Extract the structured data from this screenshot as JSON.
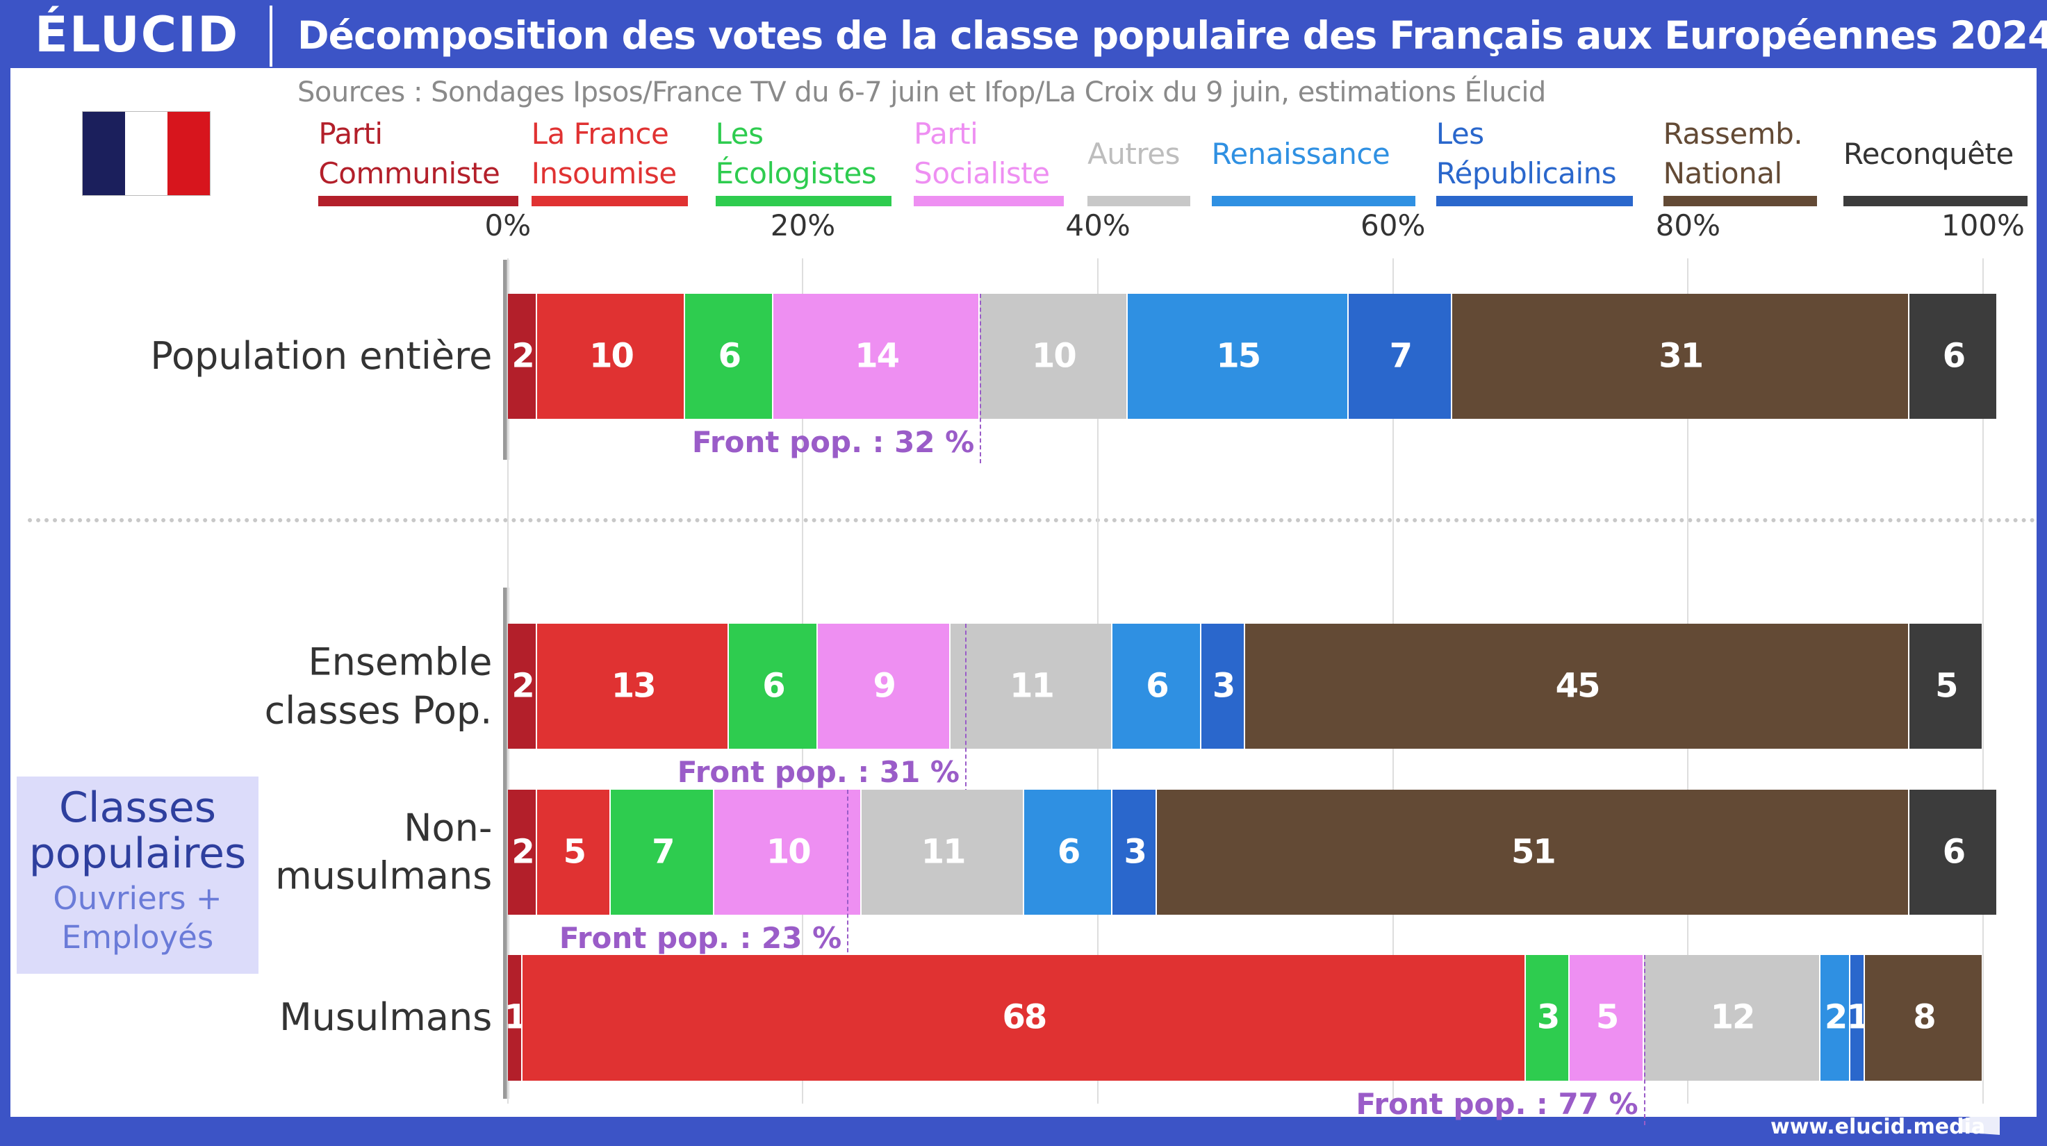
{
  "logo": "ÉLUCID",
  "footer": "www.elucid.media",
  "group": {
    "title": "Classes populaires",
    "subtitle": "Ouvriers + Employés"
  },
  "chart_data": {
    "type": "bar",
    "orientation": "horizontal",
    "stacked": true,
    "title": "Décomposition des votes de la classe populaire des Français aux Européennes 2024",
    "subtitle": "Sources : Sondages Ipsos/France TV du 6-7 juin et Ifop/La Croix du 9 juin, estimations Élucid",
    "categories": [
      "Population entière",
      "Ensemble\nclasses Pop.",
      "Non-\nmusulmans",
      "Musulmans"
    ],
    "series": [
      {
        "name": "Parti\nCommuniste",
        "color": "#b31f2a",
        "values": [
          2,
          2,
          2,
          1
        ]
      },
      {
        "name": "La France\nInsoumise",
        "color": "#e03232",
        "values": [
          10,
          13,
          5,
          68
        ]
      },
      {
        "name": "Les\nÉcologistes",
        "color": "#2ecc4f",
        "values": [
          6,
          6,
          7,
          3
        ]
      },
      {
        "name": "Parti\nSocialiste",
        "color": "#ee8ff2",
        "values": [
          14,
          9,
          10,
          5
        ]
      },
      {
        "name": "Autres",
        "color": "#c8c8c8",
        "values": [
          10,
          11,
          11,
          12
        ]
      },
      {
        "name": "Renaissance",
        "color": "#2f90e2",
        "values": [
          15,
          6,
          6,
          2
        ]
      },
      {
        "name": "Les\nRépublicains",
        "color": "#2a67cc",
        "values": [
          7,
          3,
          3,
          1
        ]
      },
      {
        "name": "Rassemb.\nNational",
        "color": "#634a35",
        "values": [
          31,
          45,
          51,
          8
        ]
      },
      {
        "name": "Reconquête",
        "color": "#3c3c3c",
        "values": [
          6,
          5,
          6,
          null
        ]
      }
    ],
    "annotations": [
      {
        "text": "Front pop. : 32 %",
        "value": 32
      },
      {
        "text": "Front pop. : 31 %",
        "value": 31
      },
      {
        "text": "Front pop. : 23 %",
        "value": 23
      },
      {
        "text": "Front pop. : 77 %",
        "value": 77
      }
    ],
    "xlim": [
      0,
      100
    ],
    "xticks": [
      {
        "value": 0,
        "label": "0%"
      },
      {
        "value": 20,
        "label": "20%"
      },
      {
        "value": 40,
        "label": "40%"
      },
      {
        "value": 60,
        "label": "60%"
      },
      {
        "value": 80,
        "label": "80%"
      },
      {
        "value": 100,
        "label": "100%"
      }
    ],
    "grid": true
  }
}
